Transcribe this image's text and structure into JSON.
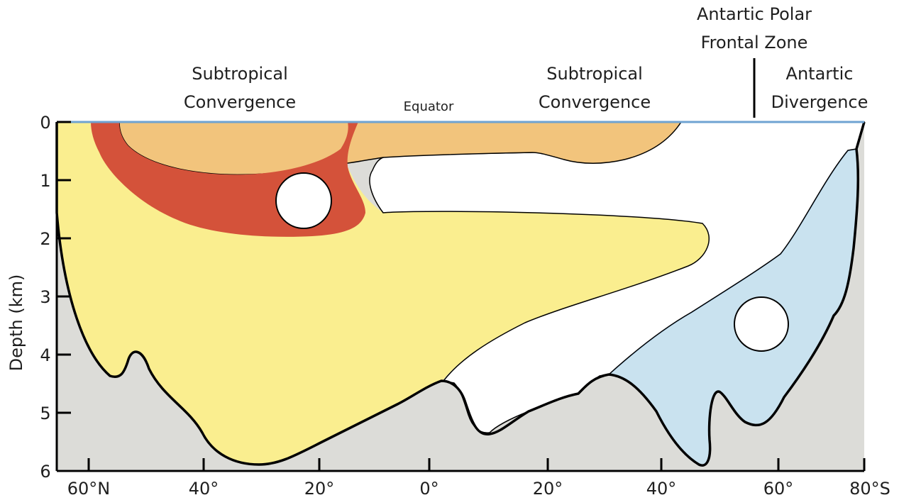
{
  "labels": {
    "nh_subtropical_line1": "Subtropical",
    "nh_subtropical_line2": "Convergence",
    "equator": "Equator",
    "sh_subtropical_line1": "Subtropical",
    "sh_subtropical_line2": "Convergence",
    "polar_front_line1": "Antartic Polar",
    "polar_front_line2": "Frontal Zone",
    "antarctic_div_line1": "Antartic",
    "antarctic_div_line2": "Divergence"
  },
  "y_axis": {
    "label": "Depth (km)",
    "ticks": [
      "0",
      "1",
      "2",
      "3",
      "4",
      "5",
      "6"
    ]
  },
  "x_axis": {
    "ticks": [
      "60°N",
      "40°",
      "20°",
      "0°",
      "20°",
      "40°",
      "60°",
      "80°S"
    ]
  },
  "colors": {
    "seafloor": "#dcdcd8",
    "deep_water_yellow": "#faee8f",
    "surface_orange": "#f2c47c",
    "red_band": "#d4523a",
    "antarctic_blue": "#c9e2ef",
    "blue_line": "#6fa3d2",
    "outline": "#000000"
  }
}
